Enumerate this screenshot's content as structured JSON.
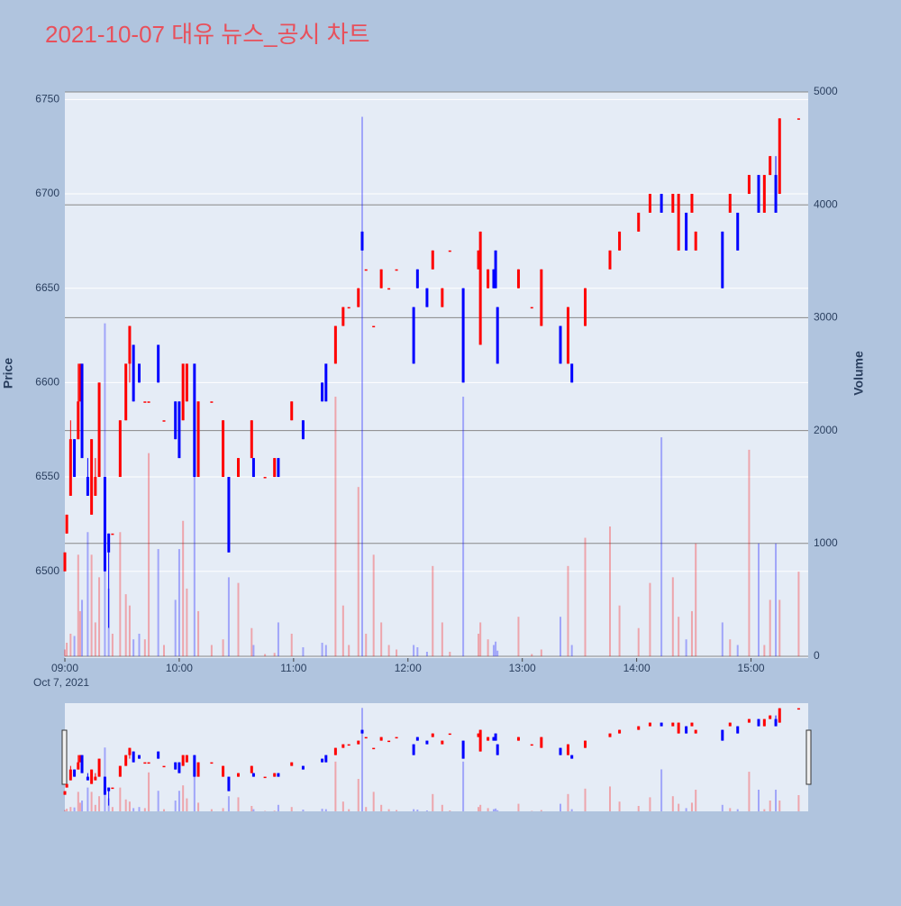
{
  "chart_data": {
    "type": "candlestick",
    "title": "2021-10-07 대유 뉴스_공시 차트",
    "y_label": "Price",
    "y2_label": "Volume",
    "x_sublabel": "Oct 7, 2021",
    "increasing_color": "#ff0000",
    "decreasing_color": "#0000ff",
    "xlim": [
      "09:00",
      "15:30"
    ],
    "xticks": [
      "09:00",
      "10:00",
      "11:00",
      "12:00",
      "13:00",
      "14:00",
      "15:00"
    ],
    "ylim": [
      6454,
      6754
    ],
    "yticks": [
      6500,
      6550,
      6600,
      6650,
      6700,
      6750
    ],
    "y2lim": [
      0,
      5000
    ],
    "y2ticks": [
      0,
      1000,
      2000,
      3000,
      4000,
      5000
    ],
    "x": [
      "09:00",
      "09:01",
      "09:03",
      "09:05",
      "09:07",
      "09:08",
      "09:09",
      "09:12",
      "09:14",
      "09:16",
      "09:18",
      "09:21",
      "09:23",
      "09:25",
      "09:29",
      "09:32",
      "09:34",
      "09:36",
      "09:39",
      "09:42",
      "09:44",
      "09:49",
      "09:52",
      "09:58",
      "10:00",
      "10:02",
      "10:04",
      "10:08",
      "10:10",
      "10:17",
      "10:23",
      "10:26",
      "10:31",
      "10:38",
      "10:39",
      "10:45",
      "10:50",
      "10:52",
      "10:59",
      "11:05",
      "11:15",
      "11:17",
      "11:22",
      "11:26",
      "11:29",
      "11:34",
      "11:36",
      "11:38",
      "11:42",
      "11:46",
      "11:50",
      "11:54",
      "12:03",
      "12:05",
      "12:10",
      "12:13",
      "12:18",
      "12:22",
      "12:29",
      "12:37",
      "12:38",
      "12:42",
      "12:45",
      "12:46",
      "12:47",
      "12:58",
      "13:05",
      "13:10",
      "13:20",
      "13:24",
      "13:26",
      "13:33",
      "13:46",
      "13:51",
      "14:01",
      "14:07",
      "14:13",
      "14:19",
      "14:22",
      "14:26",
      "14:29",
      "14:31",
      "14:45",
      "14:49",
      "14:53",
      "14:59",
      "15:04",
      "15:07",
      "15:10",
      "15:13",
      "15:15",
      "15:25"
    ],
    "open": [
      6500,
      6520,
      6540,
      6570,
      6570,
      6590,
      6610,
      6550,
      6530,
      6540,
      6550,
      6550,
      6520,
      6520,
      6550,
      6580,
      6610,
      6620,
      6610,
      6590,
      6590,
      6620,
      6580,
      6590,
      6590,
      6580,
      6590,
      6610,
      6550,
      6590,
      6550,
      6550,
      6550,
      6560,
      6560,
      6550,
      6550,
      6560,
      6580,
      6580,
      6600,
      6610,
      6610,
      6630,
      6640,
      6640,
      6680,
      6660,
      6630,
      6650,
      6650,
      6660,
      6640,
      6660,
      6650,
      6660,
      6640,
      6670,
      6650,
      6660,
      6620,
      6650,
      6660,
      6670,
      6640,
      6650,
      6640,
      6630,
      6630,
      6610,
      6610,
      6630,
      6660,
      6670,
      6680,
      6690,
      6700,
      6690,
      6670,
      6690,
      6690,
      6670,
      6680,
      6690,
      6690,
      6700,
      6710,
      6690,
      6710,
      6710,
      6700,
      6740
    ],
    "high": [
      6510,
      6530,
      6580,
      6570,
      6610,
      6610,
      6610,
      6560,
      6570,
      6560,
      6600,
      6550,
      6520,
      6520,
      6580,
      6610,
      6630,
      6620,
      6610,
      6590,
      6590,
      6620,
      6580,
      6590,
      6590,
      6610,
      6610,
      6610,
      6590,
      6590,
      6580,
      6550,
      6560,
      6580,
      6560,
      6550,
      6560,
      6560,
      6590,
      6580,
      6600,
      6610,
      6630,
      6640,
      6640,
      6650,
      6680,
      6660,
      6630,
      6660,
      6650,
      6660,
      6640,
      6660,
      6650,
      6670,
      6650,
      6670,
      6650,
      6670,
      6680,
      6660,
      6660,
      6670,
      6640,
      6660,
      6640,
      6660,
      6630,
      6640,
      6610,
      6650,
      6670,
      6680,
      6690,
      6700,
      6700,
      6700,
      6700,
      6690,
      6700,
      6680,
      6680,
      6700,
      6690,
      6710,
      6710,
      6710,
      6720,
      6720,
      6740,
      6740
    ],
    "low": [
      6500,
      6520,
      6540,
      6550,
      6570,
      6590,
      6560,
      6540,
      6530,
      6540,
      6550,
      6500,
      6470,
      6520,
      6550,
      6580,
      6600,
      6590,
      6600,
      6590,
      6590,
      6600,
      6580,
      6570,
      6560,
      6580,
      6590,
      6550,
      6550,
      6590,
      6550,
      6510,
      6550,
      6560,
      6550,
      6550,
      6550,
      6550,
      6580,
      6570,
      6590,
      6590,
      6610,
      6630,
      6640,
      6640,
      6670,
      6660,
      6630,
      6650,
      6650,
      6660,
      6610,
      6650,
      6640,
      6660,
      6640,
      6670,
      6600,
      6660,
      6620,
      6650,
      6650,
      6650,
      6610,
      6650,
      6640,
      6630,
      6610,
      6610,
      6600,
      6630,
      6660,
      6670,
      6680,
      6690,
      6690,
      6690,
      6670,
      6670,
      6690,
      6670,
      6650,
      6690,
      6670,
      6700,
      6690,
      6690,
      6710,
      6690,
      6700,
      6740
    ],
    "close": [
      6510,
      6530,
      6570,
      6550,
      6590,
      6610,
      6560,
      6540,
      6570,
      6550,
      6600,
      6500,
      6510,
      6520,
      6580,
      6610,
      6630,
      6590,
      6600,
      6590,
      6590,
      6600,
      6580,
      6570,
      6560,
      6610,
      6610,
      6550,
      6590,
      6590,
      6580,
      6510,
      6560,
      6580,
      6550,
      6550,
      6560,
      6550,
      6590,
      6570,
      6590,
      6590,
      6630,
      6640,
      6640,
      6650,
      6670,
      6660,
      6630,
      6660,
      6650,
      6660,
      6610,
      6650,
      6640,
      6670,
      6650,
      6670,
      6600,
      6670,
      6680,
      6660,
      6650,
      6650,
      6610,
      6660,
      6640,
      6660,
      6610,
      6640,
      6600,
      6650,
      6670,
      6680,
      6690,
      6700,
      6690,
      6700,
      6700,
      6670,
      6700,
      6680,
      6650,
      6700,
      6670,
      6710,
      6690,
      6710,
      6720,
      6690,
      6740,
      6740
    ],
    "volume": [
      60,
      120,
      200,
      180,
      900,
      400,
      500,
      1100,
      900,
      300,
      700,
      2950,
      600,
      200,
      1100,
      550,
      450,
      150,
      200,
      150,
      1800,
      950,
      100,
      500,
      950,
      1200,
      600,
      1600,
      400,
      100,
      150,
      700,
      650,
      250,
      100,
      20,
      30,
      300,
      200,
      80,
      120,
      100,
      2300,
      450,
      100,
      1500,
      4780,
      200,
      900,
      300,
      100,
      60,
      100,
      80,
      40,
      800,
      300,
      40,
      2300,
      200,
      300,
      150,
      100,
      130,
      50,
      350,
      20,
      60,
      350,
      800,
      100,
      1050,
      1150,
      450,
      250,
      650,
      1940,
      700,
      350,
      150,
      400,
      1000,
      300,
      150,
      100,
      1830,
      1000,
      100,
      500,
      1000,
      500,
      750
    ]
  }
}
